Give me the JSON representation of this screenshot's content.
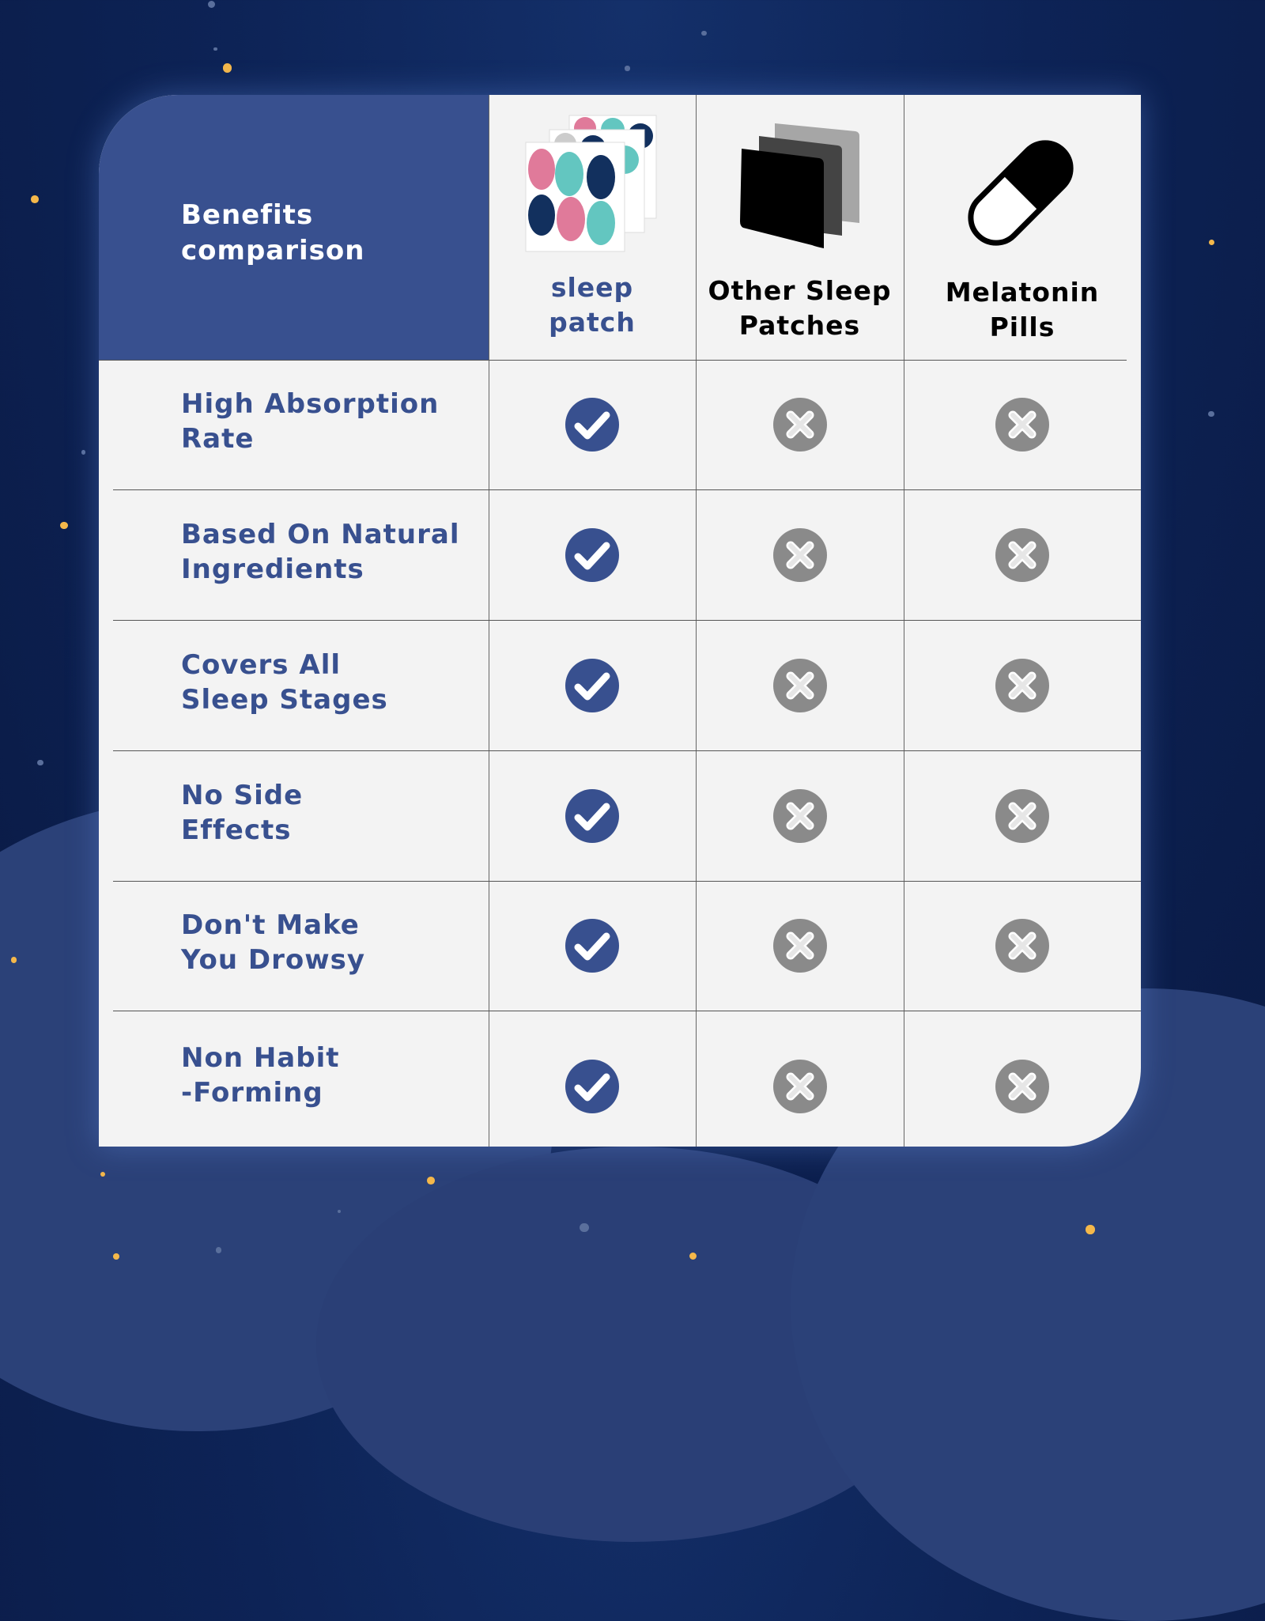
{
  "header": {
    "title_line1": "Benefits",
    "title_line2": "comparison"
  },
  "columns": [
    {
      "line1": "sleep",
      "line2": "patch",
      "color": "#38508f",
      "icon": "sleep-patch-product-image"
    },
    {
      "line1": "Other Sleep",
      "line2": "Patches",
      "color": "#000000",
      "icon": "stacked-patches-icon"
    },
    {
      "line1": "Melatonin",
      "line2": "Pills",
      "color": "#000000",
      "icon": "pill-capsule-icon"
    }
  ],
  "rows": [
    {
      "line1": "High Absorption",
      "line2": "Rate",
      "values": [
        true,
        false,
        false
      ]
    },
    {
      "line1": "Based On Natural",
      "line2": "Ingredients",
      "values": [
        true,
        false,
        false
      ]
    },
    {
      "line1": "Covers All",
      "line2": "Sleep Stages",
      "values": [
        true,
        false,
        false
      ]
    },
    {
      "line1": "No Side",
      "line2": "Effects",
      "values": [
        true,
        false,
        false
      ]
    },
    {
      "line1": "Don't Make",
      "line2": "You Drowsy",
      "values": [
        true,
        false,
        false
      ]
    },
    {
      "line1": "Non Habit",
      "line2": "-Forming",
      "values": [
        true,
        false,
        false
      ]
    }
  ],
  "colors": {
    "brand": "#38508f",
    "check": "#38508f",
    "cross": "#8a8a8a",
    "card": "#f3f3f3"
  }
}
